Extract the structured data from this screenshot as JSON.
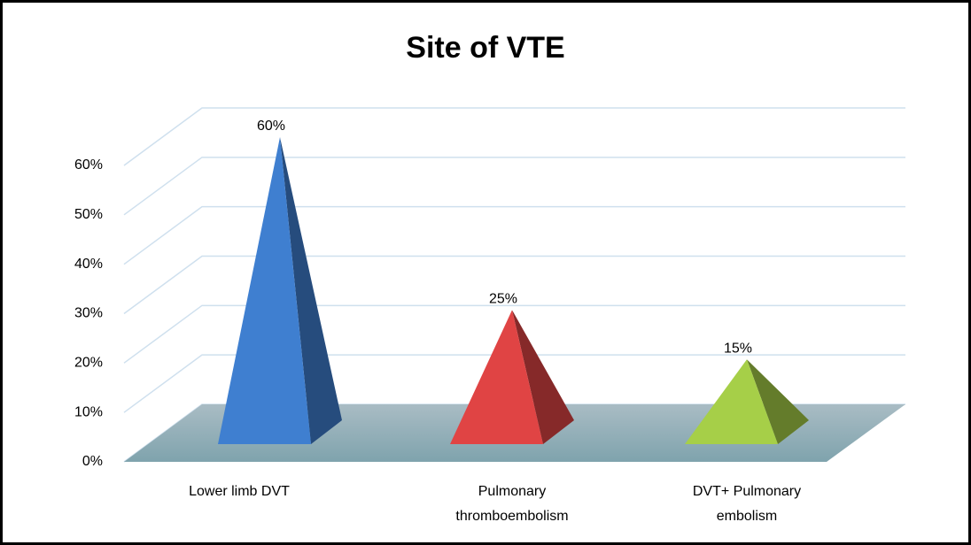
{
  "chart_data": {
    "type": "pyramid",
    "title": "Site of VTE",
    "categories": [
      "Lower limb DVT",
      "Pulmonary thromboembolism",
      "DVT+ Pulmonary embolism"
    ],
    "values": [
      60,
      25,
      15
    ],
    "value_labels": [
      "60%",
      "25%",
      "15%"
    ],
    "colors": [
      "#3f7fd0",
      "#e04444",
      "#a6cf48"
    ],
    "ylim": [
      0,
      60
    ],
    "yticks": [
      {
        "value": 0,
        "label": "0%"
      },
      {
        "value": 10,
        "label": "10%"
      },
      {
        "value": 20,
        "label": "20%"
      },
      {
        "value": 30,
        "label": "30%"
      },
      {
        "value": 40,
        "label": "40%"
      },
      {
        "value": 50,
        "label": "50%"
      },
      {
        "value": 60,
        "label": "60%"
      }
    ],
    "grid": true
  }
}
